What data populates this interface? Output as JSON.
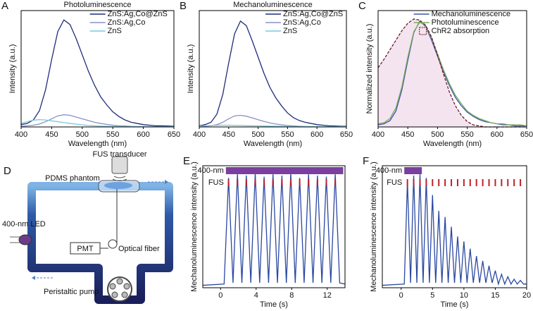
{
  "chart_data": [
    {
      "type": "line",
      "label": "A",
      "title": "Photoluminescence",
      "x_label": "Wavelength (nm)",
      "y_label": "Intensity (a.u.)",
      "x": [
        400,
        410,
        420,
        430,
        440,
        450,
        460,
        470,
        480,
        490,
        500,
        510,
        520,
        530,
        540,
        550,
        560,
        570,
        580,
        590,
        600,
        610,
        620,
        630,
        640,
        650
      ],
      "xlim": [
        400,
        650
      ],
      "xticks": [
        400,
        450,
        500,
        550,
        600,
        650
      ],
      "ylim": [
        0,
        100
      ],
      "legend": "upper right",
      "series": [
        {
          "name": "ZnS:Ag,Co@ZnS",
          "color": "#1f2d7a",
          "values": [
            2,
            3,
            6,
            14,
            32,
            58,
            82,
            92,
            88,
            76,
            62,
            48,
            36,
            26,
            19,
            13,
            9,
            6,
            4,
            3,
            2,
            1.5,
            1,
            1,
            0.8,
            0.6
          ]
        },
        {
          "name": "ZnS:Ag,Co",
          "color": "#8a8fc8",
          "values": [
            0.5,
            1,
            1.5,
            2.5,
            4.5,
            7,
            9.5,
            10.5,
            10,
            8.5,
            7,
            5.5,
            4,
            3,
            2.2,
            1.5,
            1,
            0.8,
            0.5,
            0.4,
            0.3,
            0.3,
            0.2,
            0.2,
            0.2,
            0.2
          ]
        },
        {
          "name": "ZnS",
          "color": "#7ec8d8",
          "values": [
            3,
            4.5,
            5.8,
            6.3,
            6,
            5.2,
            4.5,
            3.8,
            3,
            2.4,
            1.8,
            1.3,
            1,
            0.7,
            0.5,
            0.4,
            0.3,
            0.2,
            0.2,
            0.2,
            0.1,
            0.1,
            0.1,
            0.1,
            0.1,
            0.1
          ]
        }
      ]
    },
    {
      "type": "line",
      "label": "B",
      "title": "Mechanoluminescence",
      "x_label": "Wavelength (nm)",
      "y_label": "Intensity (a.u.)",
      "x": [
        400,
        410,
        420,
        430,
        440,
        450,
        460,
        470,
        480,
        490,
        500,
        510,
        520,
        530,
        540,
        550,
        560,
        570,
        580,
        590,
        600,
        610,
        620,
        630,
        640,
        650
      ],
      "xlim": [
        400,
        650
      ],
      "xticks": [
        400,
        450,
        500,
        550,
        600,
        650
      ],
      "ylim": [
        0,
        100
      ],
      "legend": "upper right",
      "series": [
        {
          "name": "ZnS:Ag,Co@ZnS",
          "color": "#1f2d7a",
          "values": [
            1,
            2,
            4,
            11,
            28,
            55,
            80,
            91,
            87,
            74,
            60,
            46,
            34,
            25,
            18,
            12,
            8,
            5.5,
            4,
            3,
            2,
            1.5,
            1,
            0.8,
            0.6,
            0.5
          ]
        },
        {
          "name": "ZnS:Ag,Co",
          "color": "#8a8fc8",
          "values": [
            0.3,
            0.6,
            1,
            2,
            4,
            7,
            9.5,
            10,
            9.2,
            7.8,
            6.2,
            4.8,
            3.5,
            2.5,
            1.8,
            1.2,
            0.9,
            0.6,
            0.4,
            0.3,
            0.3,
            0.2,
            0.2,
            0.2,
            0.1,
            0.1
          ]
        },
        {
          "name": "ZnS",
          "color": "#7ec8d8",
          "values": [
            0.8,
            1,
            1.2,
            1.4,
            1.5,
            1.5,
            1.4,
            1.3,
            1.1,
            1,
            0.9,
            0.8,
            0.7,
            0.6,
            0.5,
            0.4,
            0.4,
            0.3,
            0.3,
            0.3,
            0.2,
            0.2,
            0.2,
            0.2,
            0.2,
            0.2
          ]
        }
      ]
    },
    {
      "type": "line",
      "label": "C",
      "x_label": "Wavelength (nm)",
      "y_label": "Normalized intensity (a.u.)",
      "x": [
        400,
        410,
        420,
        430,
        440,
        450,
        460,
        470,
        480,
        490,
        500,
        510,
        520,
        530,
        540,
        550,
        560,
        570,
        580,
        590,
        600,
        610,
        620,
        630,
        640,
        650
      ],
      "xlim": [
        400,
        650
      ],
      "xticks": [
        400,
        450,
        500,
        550,
        600,
        650
      ],
      "ylim": [
        0,
        1.1
      ],
      "legend": "upper right",
      "series": [
        {
          "name": "Mechanoluminescence",
          "color": "#3d55a8",
          "values": [
            0.02,
            0.03,
            0.06,
            0.15,
            0.35,
            0.63,
            0.89,
            1,
            0.95,
            0.82,
            0.67,
            0.52,
            0.39,
            0.28,
            0.2,
            0.14,
            0.1,
            0.07,
            0.05,
            0.04,
            0.03,
            0.02,
            0.02,
            0.01,
            0.01,
            0.01
          ]
        },
        {
          "name": "Photoluminescence",
          "color": "#7aab5a",
          "values": [
            0.03,
            0.04,
            0.08,
            0.18,
            0.38,
            0.66,
            0.9,
            0.99,
            0.96,
            0.84,
            0.69,
            0.54,
            0.41,
            0.3,
            0.22,
            0.15,
            0.11,
            0.08,
            0.06,
            0.04,
            0.03,
            0.03,
            0.02,
            0.02,
            0.02,
            0.01
          ]
        },
        {
          "name": "ChR2 absorption",
          "color": "#6a1a2a",
          "style": "dashed",
          "fill": "#f4e4ef",
          "values": [
            0.56,
            0.64,
            0.73,
            0.82,
            0.91,
            0.98,
            1.02,
            1.01,
            0.96,
            0.85,
            0.68,
            0.5,
            0.33,
            0.2,
            0.11,
            0.05,
            0.02,
            0.01,
            0,
            0,
            0,
            0,
            0,
            0,
            0,
            0
          ]
        }
      ]
    },
    {
      "type": "line",
      "label": "E",
      "x_label": "Time (s)",
      "y_label": "Mechanoluminescence intensity (a.u.)",
      "x": [
        -2,
        0.4,
        0.9,
        1.4,
        1.9,
        2.4,
        2.9,
        3.4,
        3.9,
        4.4,
        4.9,
        5.4,
        5.9,
        6.4,
        6.9,
        7.4,
        7.9,
        8.4,
        8.9,
        9.4,
        9.9,
        10.4,
        10.9,
        11.4,
        11.9,
        12.4,
        12.9,
        13.4,
        14
      ],
      "xlim": [
        -2,
        14
      ],
      "xticks": [
        0,
        4,
        8,
        12
      ],
      "ylim": [
        0,
        100
      ],
      "series": [
        {
          "color": "#2a48a0",
          "values": [
            2,
            3,
            90,
            4,
            93,
            4,
            92,
            4,
            94,
            4,
            91,
            4,
            93,
            4,
            92,
            4,
            94,
            4,
            90,
            4,
            93,
            4,
            92,
            4,
            91,
            4,
            93,
            4,
            3
          ]
        }
      ],
      "light": {
        "label": "400-nm",
        "start": 0.6,
        "end": 13.8,
        "color": "#7b3fa0"
      },
      "fus": {
        "label": "FUS",
        "color": "#c0202a",
        "times": [
          0.9,
          1.9,
          2.9,
          3.9,
          4.9,
          5.9,
          6.9,
          7.9,
          8.9,
          9.9,
          10.9,
          11.9,
          12.9
        ]
      }
    },
    {
      "type": "line",
      "label": "F",
      "x_label": "Time (s)",
      "y_label": "Mechanoluminescence intensity (a.u.)",
      "x": [
        -3,
        0.5,
        1,
        1.5,
        2,
        2.5,
        3,
        3.5,
        4,
        4.5,
        5,
        5.5,
        6,
        6.5,
        7,
        7.5,
        8,
        8.5,
        9,
        9.5,
        10,
        10.5,
        11,
        11.5,
        12,
        12.5,
        13,
        13.5,
        14,
        14.5,
        15,
        15.5,
        16,
        16.5,
        17,
        17.5,
        18,
        18.5,
        19,
        19.5,
        20
      ],
      "xlim": [
        -3,
        20
      ],
      "xticks": [
        0,
        5,
        10,
        15,
        20
      ],
      "ylim": [
        0,
        100
      ],
      "series": [
        {
          "color": "#2a48a0",
          "values": [
            2,
            3,
            88,
            4,
            92,
            4,
            93,
            4,
            90,
            4,
            76,
            4,
            63,
            4,
            58,
            4,
            50,
            4,
            42,
            4,
            38,
            4,
            32,
            4,
            26,
            4,
            22,
            4,
            18,
            4,
            14,
            3,
            11,
            3,
            9,
            3,
            7,
            3,
            6,
            3,
            3
          ]
        }
      ],
      "light": {
        "label": "400-nm",
        "start": 0.5,
        "end": 3.3,
        "color": "#7b3fa0"
      },
      "fus": {
        "label": "FUS",
        "color": "#c0202a",
        "times": [
          1,
          2,
          3,
          4,
          5,
          6,
          7,
          8,
          9,
          10,
          11,
          12,
          13,
          14,
          15,
          16,
          17,
          18,
          19
        ]
      }
    }
  ],
  "diagram": {
    "label": "D",
    "fus_transducer": "FUS transducer",
    "phantom": "PDMS phantom",
    "led": "400-nm LED",
    "pmt": "PMT",
    "fiber": "Optical fiber",
    "pump": "Peristaltic pump"
  }
}
